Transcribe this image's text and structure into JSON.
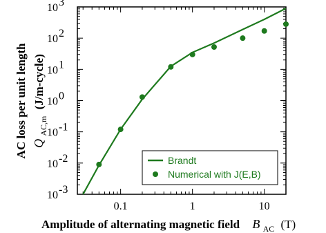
{
  "chart_data": {
    "type": "line",
    "title": "",
    "xlabel": "Amplitude of alternating magnetic field",
    "xlabel_symbol": "B",
    "xlabel_sub": "AC",
    "xlabel_unit": "(T)",
    "ylabel_line1": "AC loss per unit length",
    "ylabel_symbol": "Q",
    "ylabel_sub": "AC,m",
    "ylabel_unit": "(J/m-cycle)",
    "xscale": "log",
    "yscale": "log",
    "xlim": [
      0.025,
      20
    ],
    "ylim": [
      0.001,
      1000
    ],
    "x_ticks": [
      {
        "value": 0.1,
        "label": "0.1"
      },
      {
        "value": 1,
        "label": "1"
      },
      {
        "value": 10,
        "label": "10"
      }
    ],
    "y_ticks": [
      {
        "value": 0.001,
        "base": "10",
        "exp": "-3"
      },
      {
        "value": 0.01,
        "base": "10",
        "exp": "-2"
      },
      {
        "value": 0.1,
        "base": "10",
        "exp": "-1"
      },
      {
        "value": 1,
        "base": "10",
        "exp": "0"
      },
      {
        "value": 10,
        "base": "10",
        "exp": "1"
      },
      {
        "value": 100,
        "base": "10",
        "exp": "2"
      },
      {
        "value": 1000,
        "base": "10",
        "exp": "3"
      }
    ],
    "grid": false,
    "legend_position": "bottom-right",
    "series": [
      {
        "name": "Brandt",
        "kind": "line",
        "color": "#1e7a1e",
        "x": [
          0.03,
          0.05,
          0.1,
          0.2,
          0.5,
          1,
          2,
          5,
          10,
          20
        ],
        "y": [
          0.001,
          0.0085,
          0.12,
          1.1,
          12.5,
          35,
          70,
          190,
          400,
          900
        ]
      },
      {
        "name": "Numerical with J(E,B)",
        "kind": "scatter",
        "color": "#1e7a1e",
        "x": [
          0.05,
          0.1,
          0.2,
          0.5,
          1,
          2,
          5,
          10,
          20
        ],
        "y": [
          0.009,
          0.12,
          1.3,
          12,
          30,
          52,
          100,
          170,
          280
        ]
      }
    ]
  }
}
